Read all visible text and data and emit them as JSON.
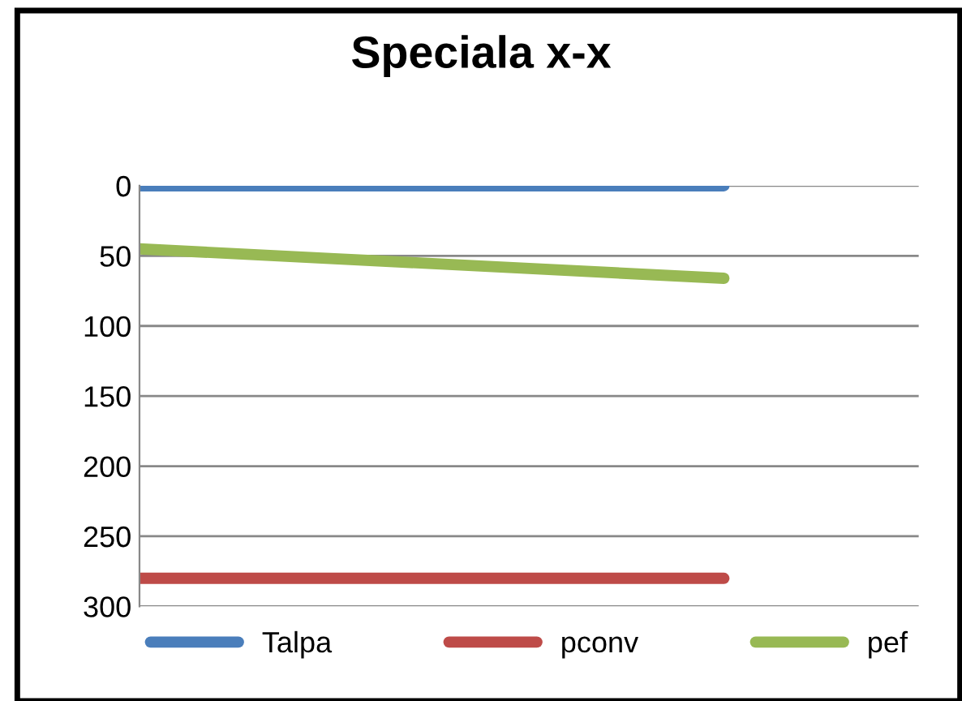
{
  "chart_data": {
    "type": "line",
    "title": "Speciala x-x",
    "categories": [
      null,
      null,
      null,
      null,
      null
    ],
    "series": [
      {
        "name": "Talpa",
        "color": "#4a7ebb",
        "values": [
          0,
          0,
          0,
          0,
          null
        ]
      },
      {
        "name": "pconv",
        "color": "#be4b48",
        "values": [
          280,
          280,
          280,
          280,
          null
        ]
      },
      {
        "name": "pef",
        "color": "#98b954",
        "values": [
          45,
          52,
          59,
          66,
          null
        ]
      }
    ],
    "ylim": [
      300,
      0
    ],
    "yticks": [
      0,
      50,
      100,
      150,
      200,
      250,
      300
    ],
    "grid": "y",
    "legend": "bottom",
    "marker": "none",
    "line_style": "solid"
  }
}
